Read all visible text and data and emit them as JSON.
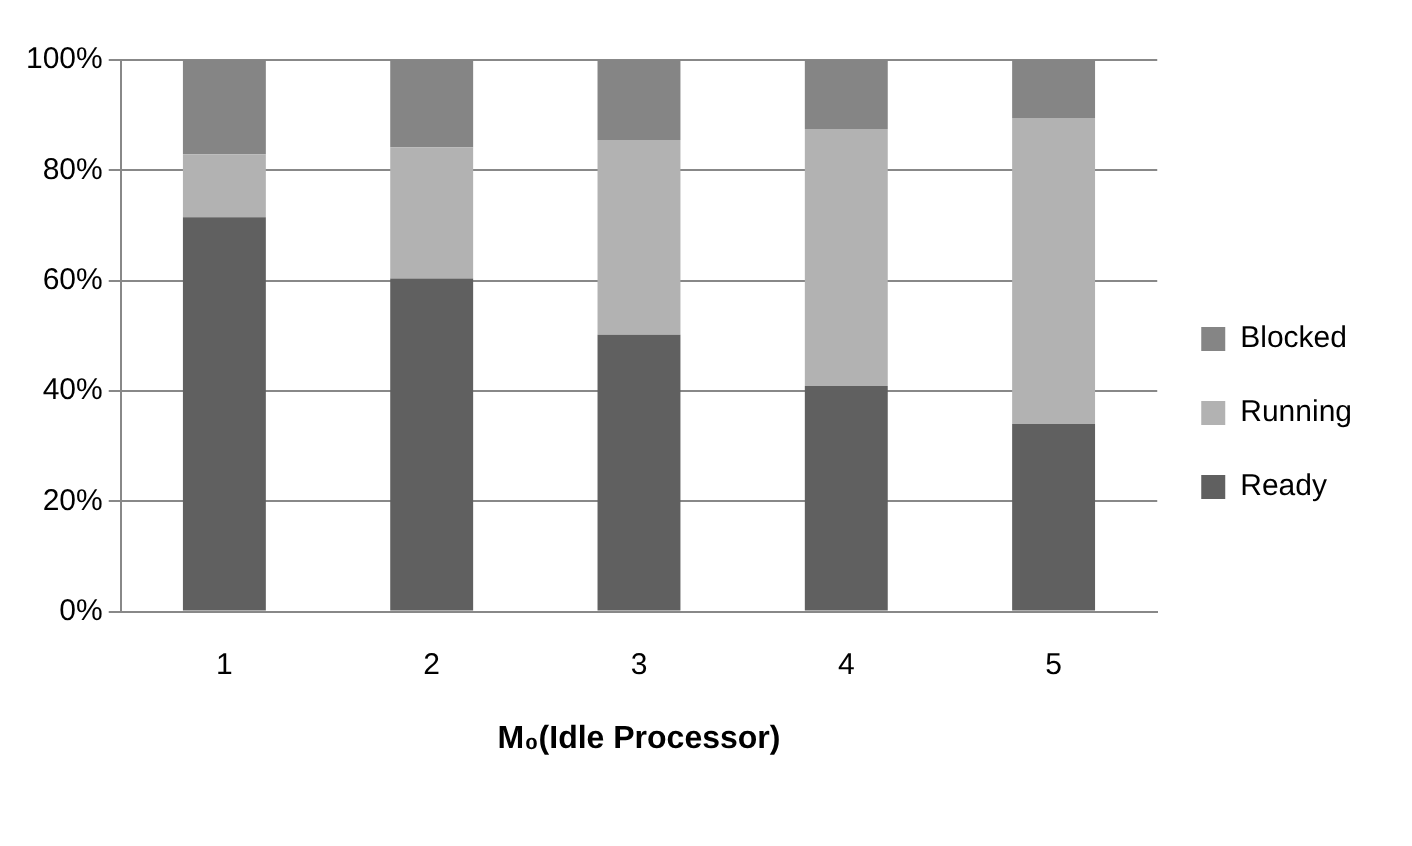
{
  "chart_data": {
    "type": "bar",
    "stacked": true,
    "xlabel": "M₀(Idle Processor)",
    "categories": [
      "1",
      "2",
      "3",
      "4",
      "5"
    ],
    "series": [
      {
        "name": "Ready",
        "color": "#606060",
        "values": [
          71.5,
          60.4,
          50.2,
          40.9,
          34.0
        ]
      },
      {
        "name": "Running",
        "color": "#b2b2b2",
        "values": [
          11.4,
          23.8,
          35.3,
          46.6,
          55.5
        ]
      },
      {
        "name": "Blocked",
        "color": "#858585",
        "values": [
          17.1,
          15.8,
          14.5,
          12.5,
          10.5
        ]
      }
    ],
    "ylim": [
      0,
      100
    ],
    "yticks": [
      {
        "value": 0,
        "label": "0%"
      },
      {
        "value": 20,
        "label": "20%"
      },
      {
        "value": 40,
        "label": "40%"
      },
      {
        "value": 60,
        "label": "60%"
      },
      {
        "value": 80,
        "label": "80%"
      },
      {
        "value": 100,
        "label": "100%"
      }
    ],
    "grid": "y",
    "legend": "right"
  }
}
